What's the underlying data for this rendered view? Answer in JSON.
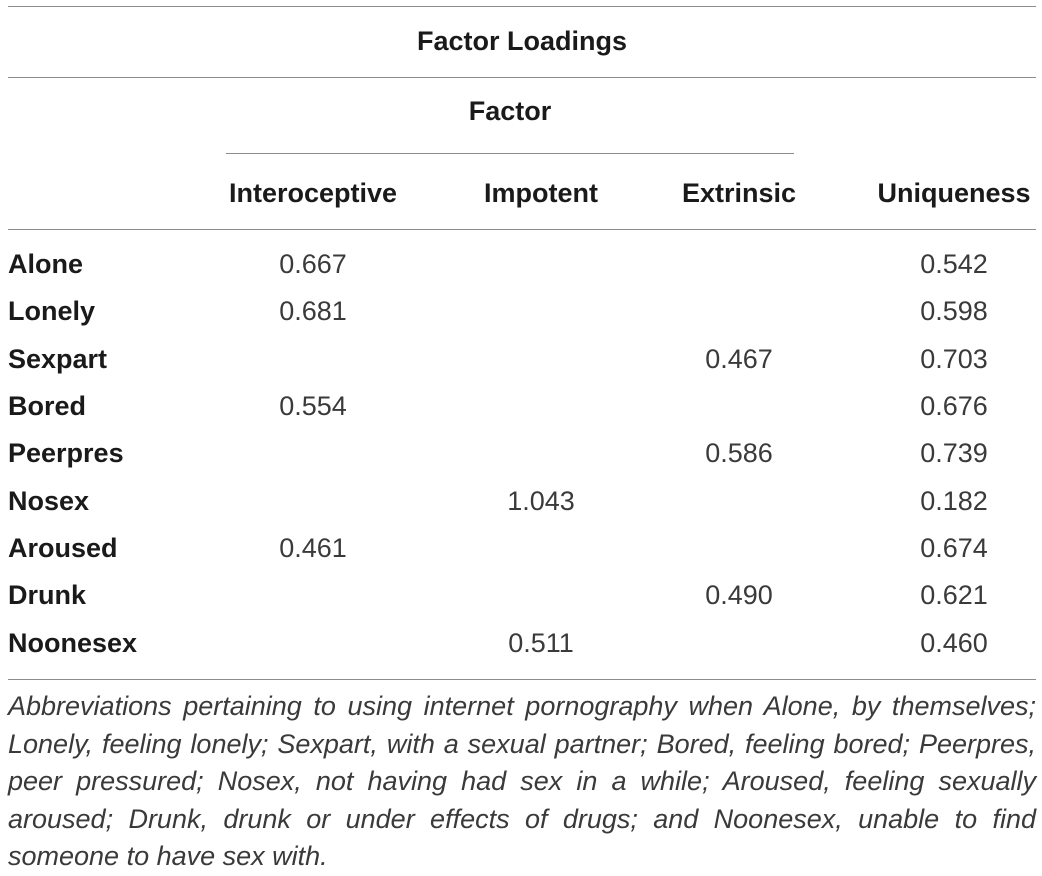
{
  "table": {
    "title": "Factor Loadings",
    "group_header": "Factor",
    "columns": [
      "Interoceptive",
      "Impotent",
      "Extrinsic",
      "Uniqueness"
    ],
    "rows": [
      {
        "label": "Alone",
        "interoceptive": "0.667",
        "impotent": "",
        "extrinsic": "",
        "uniqueness": "0.542"
      },
      {
        "label": "Lonely",
        "interoceptive": "0.681",
        "impotent": "",
        "extrinsic": "",
        "uniqueness": "0.598"
      },
      {
        "label": "Sexpart",
        "interoceptive": "",
        "impotent": "",
        "extrinsic": "0.467",
        "uniqueness": "0.703"
      },
      {
        "label": "Bored",
        "interoceptive": "0.554",
        "impotent": "",
        "extrinsic": "",
        "uniqueness": "0.676"
      },
      {
        "label": "Peerpres",
        "interoceptive": "",
        "impotent": "",
        "extrinsic": "0.586",
        "uniqueness": "0.739"
      },
      {
        "label": "Nosex",
        "interoceptive": "",
        "impotent": "1.043",
        "extrinsic": "",
        "uniqueness": "0.182"
      },
      {
        "label": "Aroused",
        "interoceptive": "0.461",
        "impotent": "",
        "extrinsic": "",
        "uniqueness": "0.674"
      },
      {
        "label": "Drunk",
        "interoceptive": "",
        "impotent": "",
        "extrinsic": "0.490",
        "uniqueness": "0.621"
      },
      {
        "label": "Noonesex",
        "interoceptive": "",
        "impotent": "0.511",
        "extrinsic": "",
        "uniqueness": "0.460"
      }
    ],
    "footnote": "Abbreviations pertaining to using internet pornography when Alone, by themselves; Lonely, feeling lonely; Sexpart, with a sexual partner; Bored, feeling bored; Peerpres, peer pressured; Nosex, not having had sex in a while; Aroused, feeling sexually aroused; Drunk, drunk or under effects of drugs; and Noonesex, unable to find someone to have sex with."
  }
}
